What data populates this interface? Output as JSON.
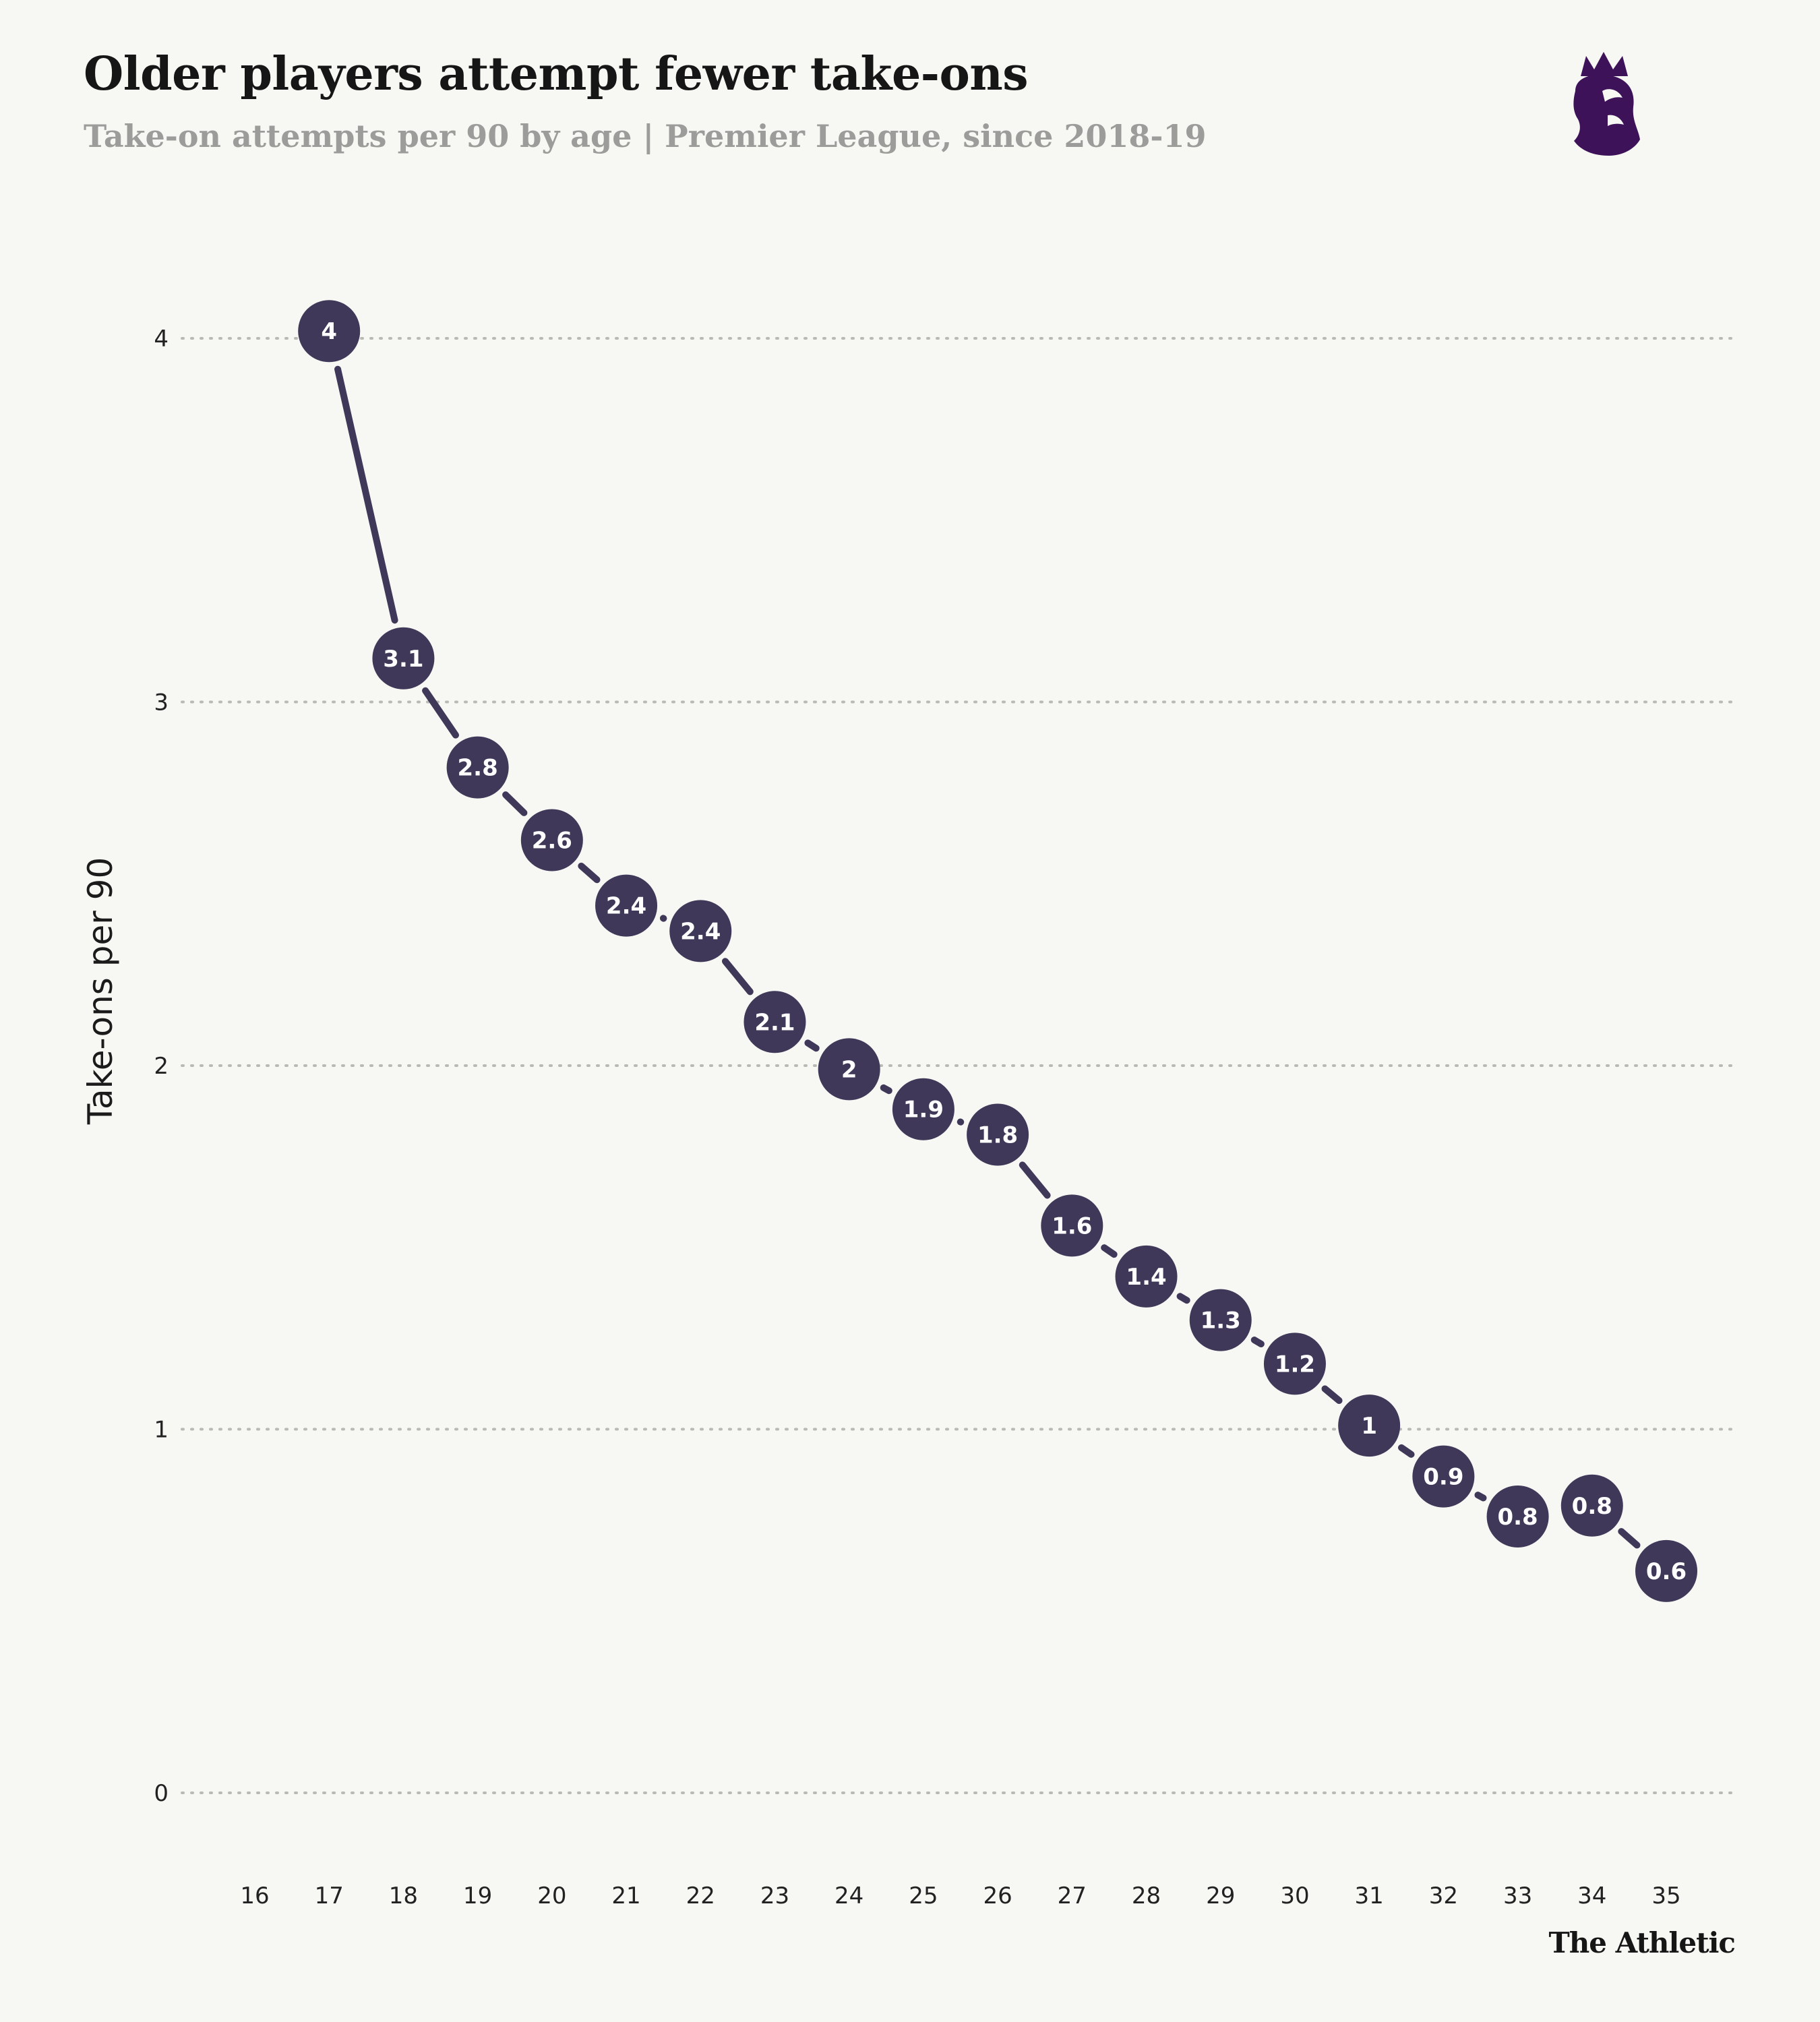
{
  "header": {
    "title": "Older players attempt fewer take-ons",
    "subtitle": "Take-on attempts per 90 by age | Premier League, since 2018-19"
  },
  "footer": {
    "brand": "The Athletic"
  },
  "logo": {
    "icon": "premier-league-lion-icon",
    "color": "#3d1259"
  },
  "colors": {
    "background": "#f7f7f3",
    "point": "#3f3858",
    "line": "#3f3858",
    "grid": "#b9b9b5"
  },
  "chart_data": {
    "type": "line",
    "title": "Older players attempt fewer take-ons",
    "xlabel": "",
    "ylabel": "Take-ons per 90",
    "x_ticks": [
      16,
      17,
      18,
      19,
      20,
      21,
      22,
      23,
      24,
      25,
      26,
      27,
      28,
      29,
      30,
      31,
      32,
      33,
      34,
      35
    ],
    "y_ticks": [
      0,
      1,
      2,
      3,
      4
    ],
    "xlim": [
      16,
      35
    ],
    "ylim": [
      0,
      4
    ],
    "grid": true,
    "series": [
      {
        "name": "Take-on attempts per 90",
        "x": [
          17,
          18,
          19,
          20,
          21,
          22,
          23,
          24,
          25,
          26,
          27,
          28,
          29,
          30,
          31,
          32,
          33,
          34,
          35
        ],
        "values": [
          4.02,
          3.12,
          2.82,
          2.62,
          2.44,
          2.37,
          2.12,
          1.99,
          1.88,
          1.81,
          1.56,
          1.42,
          1.3,
          1.18,
          1.01,
          0.87,
          0.76,
          0.79,
          0.61
        ],
        "labels": [
          "4",
          "3.1",
          "2.8",
          "2.6",
          "2.4",
          "2.4",
          "2.1",
          "2",
          "1.9",
          "1.8",
          "1.6",
          "1.4",
          "1.3",
          "1.2",
          "1",
          "0.9",
          "0.8",
          "0.8",
          "0.6"
        ]
      }
    ]
  }
}
